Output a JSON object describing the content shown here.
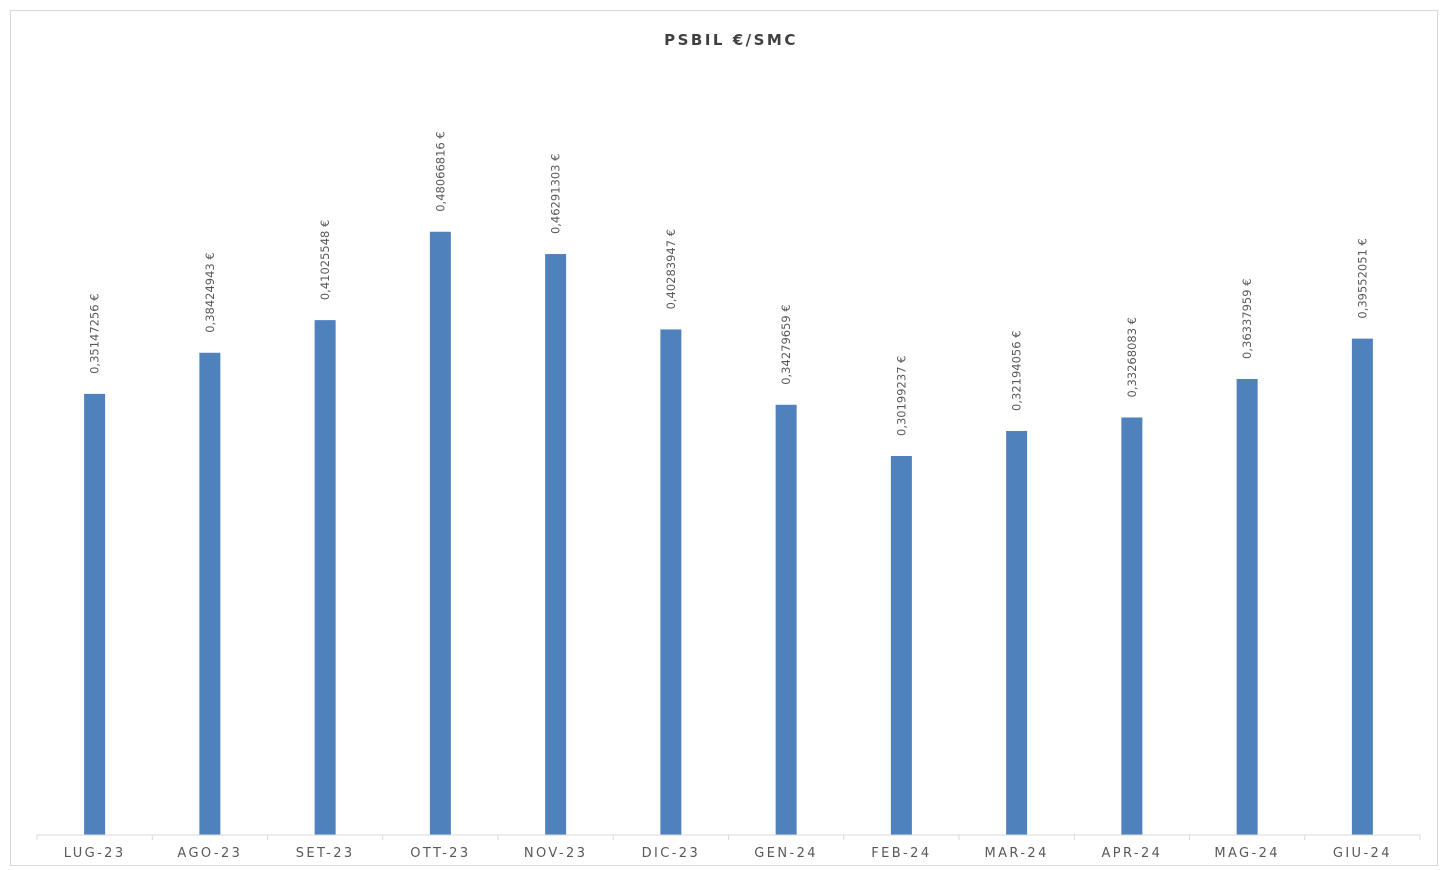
{
  "chart_data": {
    "type": "bar",
    "title": "PSBIL €/SMC",
    "xlabel": "",
    "ylabel": "",
    "categories": [
      "LUG-23",
      "AGO-23",
      "SET-23",
      "OTT-23",
      "NOV-23",
      "DIC-23",
      "GEN-24",
      "FEB-24",
      "MAR-24",
      "APR-24",
      "MAG-24",
      "GIU-24"
    ],
    "values": [
      0.35147256,
      0.38424943,
      0.41025548,
      0.48066816,
      0.46291303,
      0.40283947,
      0.34279659,
      0.30199237,
      0.32194056,
      0.33268083,
      0.36337959,
      0.39552051
    ],
    "data_labels": [
      "0,35147256 €",
      "0,38424943 €",
      "0,41025548 €",
      "0,48066816 €",
      "0,46291303 €",
      "0,40283947 €",
      "0,34279659 €",
      "0,30199237 €",
      "0,32194056 €",
      "0,33268083 €",
      "0,36337959 €",
      "0,39552051 €"
    ],
    "ylim": [
      0,
      0.5
    ],
    "grid": false,
    "legend": "none",
    "bar_color": "#4f81bd"
  }
}
